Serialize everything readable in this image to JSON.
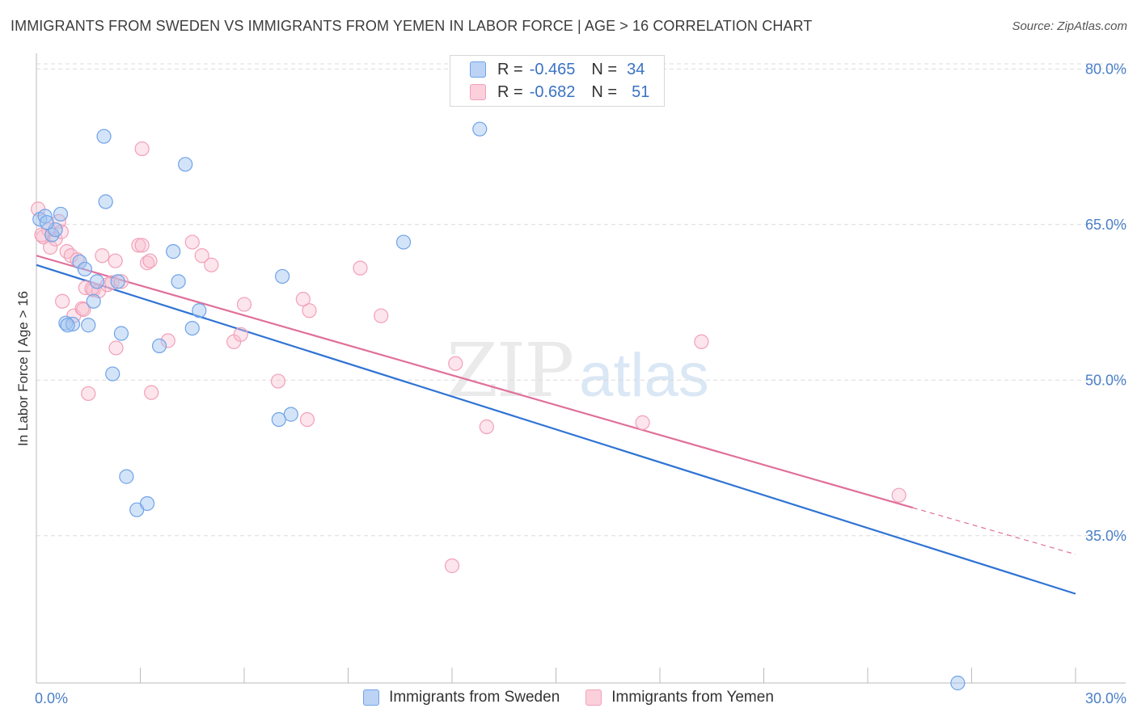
{
  "title": "IMMIGRANTS FROM SWEDEN VS IMMIGRANTS FROM YEMEN IN LABOR FORCE | AGE > 16 CORRELATION CHART",
  "source": "Source: ZipAtlas.com",
  "watermark": {
    "zip": "ZIP",
    "atlas": "atlas"
  },
  "legend": {
    "rows": [
      {
        "r_label": "R =",
        "r_value": "-0.465",
        "n_label": "N =",
        "n_value": "34"
      },
      {
        "r_label": "R =",
        "r_value": "-0.682",
        "n_label": "N =",
        "n_value": "51"
      }
    ]
  },
  "chart_data": {
    "type": "scatter",
    "title": "IMMIGRANTS FROM SWEDEN VS IMMIGRANTS FROM YEMEN IN LABOR FORCE | AGE > 16 CORRELATION CHART",
    "xlabel": "",
    "ylabel": "In Labor Force | Age > 16",
    "xlim": [
      0,
      30
    ],
    "ylim": [
      20.8,
      81.5
    ],
    "x_tick_labels": [
      "0.0%",
      "30.0%"
    ],
    "y_ticks": [
      35,
      50,
      65,
      80
    ],
    "y_tick_labels": [
      "35.0%",
      "50.0%",
      "65.0%",
      "80.0%"
    ],
    "colors": {
      "sweden": "#6fa3e8",
      "yemen": "#f2a0b8",
      "sweden_line": "#2f73d4",
      "yemen_line": "#e0709a"
    },
    "series": [
      {
        "name": "Immigrants from Sweden",
        "r": -0.465,
        "n": 34,
        "trend": {
          "x0": 0,
          "y0": 61.1,
          "x1": 30,
          "y1": 29.4
        },
        "points": [
          [
            0.1,
            65.5
          ],
          [
            0.25,
            65.8
          ],
          [
            0.45,
            64.0
          ],
          [
            0.7,
            66.0
          ],
          [
            0.55,
            64.5
          ],
          [
            0.85,
            55.5
          ],
          [
            1.05,
            55.4
          ],
          [
            0.9,
            55.3
          ],
          [
            1.5,
            55.3
          ],
          [
            1.25,
            61.4
          ],
          [
            1.4,
            60.7
          ],
          [
            1.65,
            57.6
          ],
          [
            1.75,
            59.5
          ],
          [
            2.35,
            59.5
          ],
          [
            1.95,
            73.5
          ],
          [
            2.0,
            67.2
          ],
          [
            2.45,
            54.5
          ],
          [
            2.2,
            50.6
          ],
          [
            2.6,
            40.7
          ],
          [
            2.9,
            37.5
          ],
          [
            3.2,
            38.1
          ],
          [
            3.55,
            53.3
          ],
          [
            3.95,
            62.4
          ],
          [
            4.1,
            59.5
          ],
          [
            4.3,
            70.8
          ],
          [
            4.5,
            55.0
          ],
          [
            4.7,
            56.7
          ],
          [
            7.0,
            46.2
          ],
          [
            7.35,
            46.7
          ],
          [
            7.1,
            60.0
          ],
          [
            10.6,
            63.3
          ],
          [
            12.8,
            74.2
          ],
          [
            26.6,
            20.8
          ],
          [
            0.3,
            65.2
          ]
        ]
      },
      {
        "name": "Immigrants from Yemen",
        "r": -0.682,
        "n": 51,
        "trend": {
          "x0": 0,
          "y0": 62.0,
          "x1": 25.3,
          "y1": 37.7,
          "dash_x1": 30,
          "dash_y1": 33.2
        },
        "points": [
          [
            0.05,
            66.5
          ],
          [
            0.2,
            63.8
          ],
          [
            0.35,
            64.5
          ],
          [
            0.4,
            62.8
          ],
          [
            0.55,
            63.6
          ],
          [
            0.65,
            65.3
          ],
          [
            0.72,
            64.3
          ],
          [
            0.75,
            57.6
          ],
          [
            0.88,
            62.4
          ],
          [
            1.0,
            62.0
          ],
          [
            1.08,
            56.2
          ],
          [
            1.18,
            61.6
          ],
          [
            1.32,
            56.9
          ],
          [
            1.36,
            56.8
          ],
          [
            1.42,
            58.9
          ],
          [
            1.5,
            48.7
          ],
          [
            1.65,
            58.7
          ],
          [
            1.8,
            58.6
          ],
          [
            1.9,
            62.0
          ],
          [
            2.05,
            59.2
          ],
          [
            2.18,
            59.4
          ],
          [
            2.28,
            61.5
          ],
          [
            2.3,
            53.1
          ],
          [
            2.45,
            59.5
          ],
          [
            2.95,
            63.0
          ],
          [
            3.05,
            63.0
          ],
          [
            3.05,
            72.3
          ],
          [
            3.2,
            61.3
          ],
          [
            3.28,
            61.5
          ],
          [
            3.32,
            48.8
          ],
          [
            3.8,
            53.8
          ],
          [
            4.5,
            63.3
          ],
          [
            4.78,
            62.0
          ],
          [
            5.05,
            61.1
          ],
          [
            5.7,
            53.7
          ],
          [
            5.9,
            54.4
          ],
          [
            6.0,
            57.3
          ],
          [
            6.98,
            49.9
          ],
          [
            7.7,
            57.8
          ],
          [
            7.82,
            46.2
          ],
          [
            7.88,
            56.7
          ],
          [
            9.35,
            60.8
          ],
          [
            9.95,
            56.2
          ],
          [
            12.1,
            51.6
          ],
          [
            12.0,
            32.1
          ],
          [
            13.0,
            45.5
          ],
          [
            17.5,
            45.9
          ],
          [
            19.2,
            53.7
          ],
          [
            24.9,
            38.9
          ],
          [
            0.15,
            64.0
          ],
          [
            1.6,
            58.8
          ]
        ]
      }
    ]
  }
}
